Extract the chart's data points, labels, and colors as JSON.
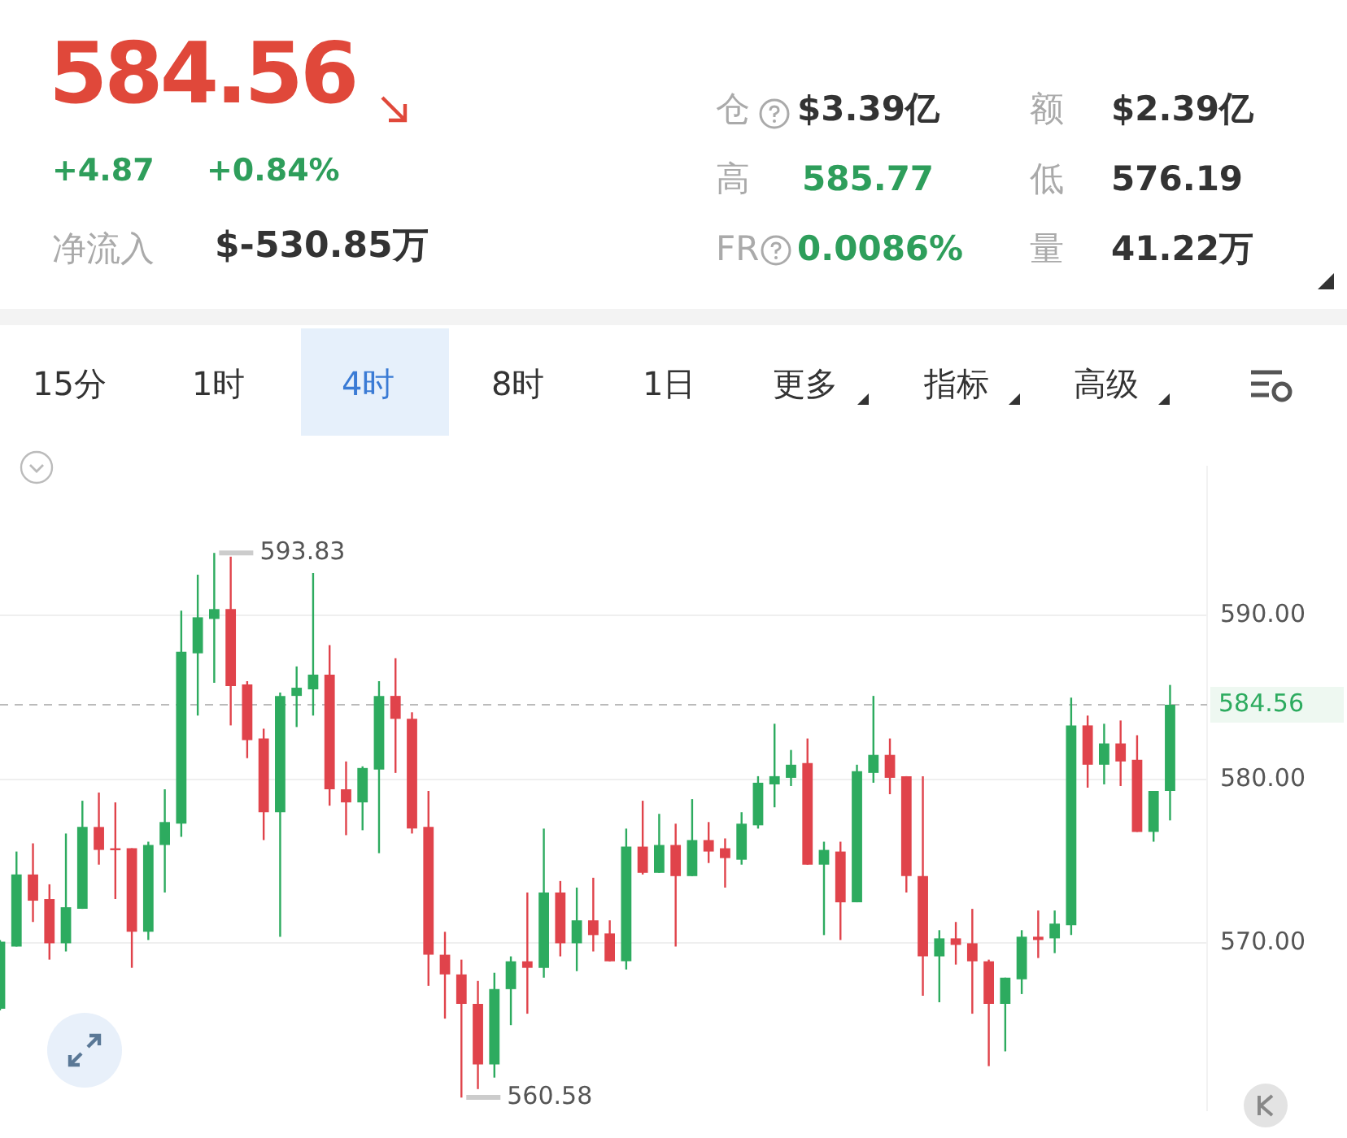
{
  "chart_data": {
    "type": "candlestick",
    "annotations": [
      "584.56",
      "+4.87",
      "+0.84%",
      "净流入",
      "$-530.85万",
      "仓",
      "$3.39亿",
      "额",
      "$2.39亿",
      "高",
      "585.77",
      "低",
      "576.19",
      "FR",
      "0.0086%",
      "量",
      "41.22万",
      "15分",
      "1时",
      "4时",
      "8时",
      "1日",
      "更多",
      "指标",
      "高级",
      "593.83",
      "560.58"
    ],
    "categories": [
      null,
      null,
      null,
      null,
      null,
      null,
      null,
      null,
      null,
      null,
      null,
      null,
      null,
      null,
      null,
      null,
      null,
      null,
      null,
      null,
      null,
      null,
      null,
      null,
      null,
      null,
      null,
      null,
      null,
      null,
      null,
      null,
      null,
      null,
      null,
      null,
      null,
      null,
      null,
      null,
      null,
      null,
      null,
      null,
      null,
      null,
      null,
      null,
      null,
      null,
      null,
      null,
      null,
      null,
      null,
      null,
      null,
      null,
      null,
      null,
      null,
      null,
      null,
      null,
      null,
      null,
      null,
      null,
      null,
      null,
      null,
      null
    ],
    "ohlc": [
      [
        566.0,
        570.2,
        565.9,
        570.1
      ],
      [
        569.8,
        575.6,
        569.8,
        574.2
      ],
      [
        574.2,
        576.1,
        571.3,
        572.6
      ],
      [
        572.7,
        573.6,
        569.0,
        570.0
      ],
      [
        570.0,
        576.7,
        569.5,
        572.2
      ],
      [
        572.1,
        578.7,
        572.1,
        577.1
      ],
      [
        577.1,
        579.2,
        574.8,
        575.7
      ],
      [
        575.8,
        578.6,
        572.7,
        575.7
      ],
      [
        575.8,
        575.8,
        568.5,
        570.7
      ],
      [
        570.7,
        576.2,
        570.2,
        576.0
      ],
      [
        576.0,
        579.4,
        573.1,
        577.4
      ],
      [
        577.3,
        590.3,
        576.5,
        587.8
      ],
      [
        587.7,
        592.5,
        583.9,
        589.9
      ],
      [
        589.8,
        593.83,
        585.9,
        590.4
      ],
      [
        590.4,
        593.6,
        583.3,
        585.7
      ],
      [
        585.8,
        586.0,
        581.3,
        582.4
      ],
      [
        582.5,
        583.1,
        576.3,
        578.0
      ],
      [
        578.0,
        585.3,
        570.4,
        585.1
      ],
      [
        585.1,
        586.9,
        583.2,
        585.6
      ],
      [
        585.5,
        592.6,
        583.9,
        586.4
      ],
      [
        586.4,
        588.2,
        578.4,
        579.4
      ],
      [
        579.4,
        581.1,
        576.6,
        578.6
      ],
      [
        578.6,
        580.8,
        576.9,
        580.7
      ],
      [
        580.6,
        586.0,
        575.5,
        585.1
      ],
      [
        585.1,
        587.4,
        580.4,
        583.7
      ],
      [
        583.7,
        584.1,
        576.7,
        577.0
      ],
      [
        577.1,
        579.3,
        567.4,
        569.3
      ],
      [
        569.3,
        570.7,
        565.4,
        568.1
      ],
      [
        568.1,
        569.0,
        560.58,
        566.3
      ],
      [
        566.3,
        567.7,
        561.1,
        562.6
      ],
      [
        562.6,
        568.2,
        561.8,
        567.2
      ],
      [
        567.2,
        569.2,
        565.0,
        568.9
      ],
      [
        568.9,
        573.1,
        565.7,
        568.5
      ],
      [
        568.5,
        577.0,
        567.9,
        573.1
      ],
      [
        573.1,
        573.8,
        569.2,
        570.0
      ],
      [
        570.0,
        573.4,
        568.3,
        571.4
      ],
      [
        571.4,
        574.0,
        569.5,
        570.5
      ],
      [
        570.6,
        571.4,
        568.9,
        568.9
      ],
      [
        568.9,
        577.0,
        568.4,
        575.9
      ],
      [
        575.9,
        578.7,
        574.2,
        574.3
      ],
      [
        574.3,
        577.9,
        574.3,
        576.0
      ],
      [
        576.0,
        577.3,
        569.8,
        574.1
      ],
      [
        574.1,
        578.8,
        574.1,
        576.3
      ],
      [
        576.3,
        577.4,
        574.9,
        575.6
      ],
      [
        575.8,
        576.4,
        573.4,
        575.2
      ],
      [
        575.1,
        578.0,
        574.8,
        577.3
      ],
      [
        577.2,
        580.2,
        577.0,
        579.8
      ],
      [
        579.7,
        583.4,
        578.3,
        580.2
      ],
      [
        580.1,
        581.8,
        579.6,
        580.9
      ],
      [
        581.0,
        582.5,
        574.8,
        574.8
      ],
      [
        574.8,
        576.2,
        570.5,
        575.7
      ],
      [
        575.6,
        576.2,
        570.2,
        572.5
      ],
      [
        572.5,
        580.9,
        572.5,
        580.5
      ],
      [
        580.4,
        585.1,
        579.8,
        581.5
      ],
      [
        581.5,
        582.5,
        579.1,
        580.1
      ],
      [
        580.2,
        580.2,
        573.1,
        574.1
      ],
      [
        574.1,
        580.2,
        566.8,
        569.2
      ],
      [
        569.2,
        570.8,
        566.4,
        570.3
      ],
      [
        570.3,
        571.3,
        568.7,
        569.9
      ],
      [
        570.0,
        572.1,
        565.7,
        568.9
      ],
      [
        568.9,
        569.0,
        562.5,
        566.3
      ],
      [
        566.3,
        567.9,
        563.4,
        567.9
      ],
      [
        567.8,
        570.8,
        566.9,
        570.4
      ],
      [
        570.4,
        572.0,
        569.1,
        570.2
      ],
      [
        570.3,
        572.0,
        569.4,
        571.2
      ],
      [
        571.1,
        585.0,
        570.5,
        583.3
      ],
      [
        583.3,
        583.9,
        579.5,
        580.9
      ],
      [
        580.9,
        583.4,
        579.7,
        582.2
      ],
      [
        582.2,
        583.6,
        579.6,
        581.1
      ],
      [
        581.2,
        582.7,
        576.8,
        576.8
      ],
      [
        576.8,
        579.3,
        576.2,
        579.3
      ],
      [
        579.3,
        585.77,
        577.5,
        584.56
      ]
    ],
    "colors": [
      "#2dab5f",
      "#2dab5f",
      "#e0434b",
      "#e0434b",
      "#2dab5f",
      "#2dab5f",
      "#e0434b",
      "#e0434b",
      "#e0434b",
      "#2dab5f",
      "#2dab5f",
      "#2dab5f",
      "#2dab5f",
      "#2dab5f",
      "#e0434b",
      "#e0434b",
      "#e0434b",
      "#2dab5f",
      "#2dab5f",
      "#2dab5f",
      "#e0434b",
      "#e0434b",
      "#2dab5f",
      "#2dab5f",
      "#e0434b",
      "#e0434b",
      "#e0434b",
      "#e0434b",
      "#e0434b",
      "#e0434b",
      "#2dab5f",
      "#2dab5f",
      "#e0434b",
      "#2dab5f",
      "#e0434b",
      "#2dab5f",
      "#e0434b",
      "#e0434b",
      "#2dab5f",
      "#e0434b",
      "#2dab5f",
      "#e0434b",
      "#2dab5f",
      "#e0434b",
      "#e0434b",
      "#2dab5f",
      "#2dab5f",
      "#2dab5f",
      "#2dab5f",
      "#e0434b",
      "#2dab5f",
      "#e0434b",
      "#2dab5f",
      "#2dab5f",
      "#e0434b",
      "#e0434b",
      "#e0434b",
      "#2dab5f",
      "#e0434b",
      "#e0434b",
      "#e0434b",
      "#2dab5f",
      "#2dab5f",
      "#e0434b",
      "#2dab5f",
      "#2dab5f",
      "#e0434b",
      "#2dab5f",
      "#e0434b",
      "#e0434b",
      "#2dab5f",
      "#2dab5f"
    ],
    "ylim": [
      559.8,
      599.1
    ],
    "yticks": [
      {
        "value": 570,
        "label": "570.00"
      },
      {
        "value": 580,
        "label": "580.00"
      },
      {
        "value": 590,
        "label": "590.00"
      }
    ],
    "ref_lines": [
      {
        "axis": "y",
        "value": 584.56,
        "label": "584.56",
        "color": "#bbbbbb",
        "line_style": "dashed"
      }
    ],
    "grid": "y",
    "tick_labels": "y"
  }
}
